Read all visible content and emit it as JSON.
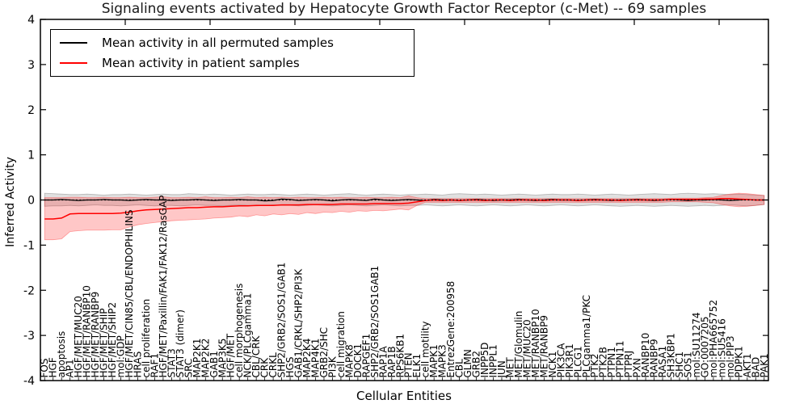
{
  "chart_data": {
    "type": "line",
    "title": "Signaling events activated by Hepatocyte Growth Factor Receptor (c-Met) -- 69 samples",
    "xlabel": "Cellular Entities",
    "ylabel": "Inferred Activity",
    "ylim": [
      -4,
      4
    ],
    "yticks": [
      4,
      3,
      2,
      1,
      0,
      -1,
      -2,
      -3,
      -4
    ],
    "grid": false,
    "legend_position": "upper left",
    "zero_line": {
      "style": "dotted",
      "color": "#000000",
      "y": 0
    },
    "categories": [
      "FOS",
      "HGF",
      "apoptosis",
      "AP1",
      "HGF/MET/MUC20",
      "HGF/MET/RANBP10",
      "HGF/MET/RANBP9",
      "HGF/MET/SHIP",
      "HGF/MET/SHIP2",
      "mol:GDP",
      "HGF/MET/CIN85/CBL/ENDOPHILINS",
      "HRAS",
      "cell proliferation",
      "RAF1",
      "HGF/MET/Paxillin/FAK1/FAK12/RasGAP",
      "STAT3",
      "STAT3 (dimer)",
      "SRC",
      "MAP2K1",
      "MAP2K2",
      "GAB1",
      "MAP3K5",
      "HGF/MET",
      "cell morphogenesis",
      "NCK/PLCgamma1",
      "CBL/CRK",
      "CRK",
      "CRKL",
      "SHP2/GRB2/SOS1/GAB1",
      "HGS",
      "GAB1/CRKL/SHP2/PI3K",
      "MAP2K4",
      "MAP4K1",
      "GRB2/SHC",
      "PI3K",
      "cell migration",
      "MAPK8",
      "DOCK1",
      "RAPGEF1",
      "SHP2/GRB2/SOS1GAB1",
      "RAP1A",
      "RAP1B",
      "RPS6KB1",
      "PTEN",
      "ELK1",
      "cell motility",
      "MAPK1",
      "MAPK3",
      "EntrezGene:200958",
      "CBL",
      "GLMN",
      "GRB2",
      "INPP5D",
      "INPPL1",
      "JUN",
      "MET",
      "MET/Glomulin",
      "MET/MUC20",
      "MET/RANBP10",
      "MET/RANBP9",
      "NCK1",
      "PIK3CA",
      "PIK3R1",
      "PLCG1",
      "PLCgamma1/PKC",
      "PTK2",
      "PTK2B",
      "PTPN1",
      "PTPN11",
      "PTPRJ",
      "PXN",
      "RANBP10",
      "RANBP9",
      "RASA1",
      "SH3KBP1",
      "SHC1",
      "SOS1",
      "mol:SU11274",
      "GO:0007205",
      "mol:PHA665752",
      "mol:SU5416",
      "mol:PIP3",
      "PDPK1",
      "AKT1",
      "BAD",
      "PAK1"
    ],
    "series": [
      {
        "name": "Mean activity in all permuted samples",
        "color": "#000000",
        "band_color": "#000000",
        "band_opacity": 0.12,
        "values": [
          0.0,
          0.0,
          0.01,
          0.0,
          -0.01,
          0.0,
          0.0,
          0.01,
          0.0,
          0.0,
          -0.01,
          0.0,
          0.01,
          0.0,
          0.0,
          -0.01,
          0.0,
          0.0,
          0.01,
          0.0,
          -0.01,
          0.0,
          0.0,
          0.01,
          0.0,
          0.0,
          -0.02,
          -0.01,
          0.02,
          0.01,
          -0.01,
          0.0,
          0.01,
          0.0,
          -0.02,
          0.0,
          0.01,
          0.0,
          -0.01,
          0.02,
          0.0,
          -0.01,
          0.0,
          0.01,
          0.0,
          -0.01,
          0.01,
          0.0,
          0.0,
          -0.01,
          0.0,
          0.01,
          0.0,
          -0.01,
          0.0,
          0.0,
          0.01,
          0.0,
          -0.01,
          0.0,
          0.01,
          0.0,
          0.0,
          -0.01,
          0.0,
          0.01,
          0.0,
          -0.01,
          0.0,
          0.0,
          0.01,
          0.0,
          -0.01,
          0.0,
          0.01,
          0.0,
          -0.01,
          0.0,
          0.0,
          0.01,
          0.0,
          -0.01,
          0.0,
          0.01,
          0.0,
          0.0
        ],
        "band_upper": [
          0.15,
          0.14,
          0.13,
          0.12,
          0.12,
          0.13,
          0.12,
          0.11,
          0.12,
          0.12,
          0.13,
          0.12,
          0.11,
          0.12,
          0.13,
          0.12,
          0.12,
          0.14,
          0.13,
          0.12,
          0.13,
          0.12,
          0.11,
          0.12,
          0.13,
          0.12,
          0.12,
          0.13,
          0.12,
          0.11,
          0.12,
          0.13,
          0.12,
          0.11,
          0.12,
          0.13,
          0.14,
          0.12,
          0.11,
          0.12,
          0.13,
          0.12,
          0.11,
          0.12,
          0.12,
          0.13,
          0.12,
          0.11,
          0.13,
          0.14,
          0.13,
          0.12,
          0.13,
          0.12,
          0.11,
          0.12,
          0.13,
          0.12,
          0.11,
          0.12,
          0.13,
          0.12,
          0.12,
          0.13,
          0.12,
          0.11,
          0.12,
          0.13,
          0.12,
          0.11,
          0.12,
          0.13,
          0.14,
          0.13,
          0.12,
          0.14,
          0.15,
          0.14,
          0.13,
          0.14,
          0.13,
          0.12,
          0.13,
          0.12,
          0.11,
          0.1
        ],
        "band_lower": [
          -0.14,
          -0.13,
          -0.13,
          -0.12,
          -0.13,
          -0.12,
          -0.11,
          -0.12,
          -0.12,
          -0.13,
          -0.12,
          -0.11,
          -0.12,
          -0.13,
          -0.12,
          -0.12,
          -0.13,
          -0.12,
          -0.11,
          -0.12,
          -0.12,
          -0.13,
          -0.12,
          -0.11,
          -0.12,
          -0.13,
          -0.12,
          -0.11,
          -0.12,
          -0.12,
          -0.13,
          -0.12,
          -0.11,
          -0.12,
          -0.13,
          -0.12,
          -0.11,
          -0.12,
          -0.13,
          -0.12,
          -0.11,
          -0.12,
          -0.13,
          -0.12,
          -0.12,
          -0.11,
          -0.12,
          -0.13,
          -0.12,
          -0.11,
          -0.12,
          -0.13,
          -0.12,
          -0.11,
          -0.12,
          -0.13,
          -0.12,
          -0.11,
          -0.12,
          -0.13,
          -0.12,
          -0.11,
          -0.12,
          -0.13,
          -0.12,
          -0.11,
          -0.12,
          -0.13,
          -0.14,
          -0.13,
          -0.12,
          -0.13,
          -0.14,
          -0.13,
          -0.12,
          -0.13,
          -0.14,
          -0.13,
          -0.12,
          -0.13,
          -0.12,
          -0.11,
          -0.12,
          -0.13,
          -0.12,
          -0.1
        ]
      },
      {
        "name": "Mean activity in patient samples",
        "color": "#ff0000",
        "band_color": "#ff0000",
        "band_opacity": 0.22,
        "values": [
          -0.42,
          -0.42,
          -0.4,
          -0.31,
          -0.3,
          -0.3,
          -0.3,
          -0.3,
          -0.3,
          -0.29,
          -0.27,
          -0.24,
          -0.22,
          -0.21,
          -0.2,
          -0.19,
          -0.18,
          -0.17,
          -0.17,
          -0.16,
          -0.15,
          -0.15,
          -0.14,
          -0.13,
          -0.13,
          -0.12,
          -0.12,
          -0.12,
          -0.11,
          -0.11,
          -0.11,
          -0.1,
          -0.1,
          -0.1,
          -0.1,
          -0.09,
          -0.09,
          -0.09,
          -0.09,
          -0.08,
          -0.08,
          -0.08,
          -0.08,
          -0.07,
          -0.04,
          -0.01,
          0.0,
          -0.01,
          0.0,
          -0.01,
          0.0,
          0.0,
          -0.01,
          0.0,
          0.0,
          -0.01,
          0.0,
          0.0,
          0.0,
          -0.01,
          0.0,
          0.0,
          0.0,
          -0.01,
          0.0,
          0.0,
          0.0,
          0.0,
          -0.01,
          0.0,
          0.0,
          0.0,
          0.0,
          0.0,
          0.01,
          0.01,
          0.01,
          0.01,
          0.02,
          0.02,
          0.03,
          0.03,
          0.02,
          0.01,
          0.0,
          0.0
        ],
        "band_upper": [
          0.05,
          0.05,
          0.05,
          0.06,
          0.06,
          0.05,
          0.05,
          0.06,
          0.05,
          0.05,
          0.06,
          0.05,
          0.05,
          0.06,
          0.07,
          0.05,
          0.05,
          0.06,
          0.05,
          0.07,
          0.05,
          0.05,
          0.06,
          0.05,
          0.07,
          0.05,
          0.06,
          0.05,
          0.06,
          0.05,
          0.06,
          0.05,
          0.05,
          0.06,
          0.05,
          0.06,
          0.05,
          0.05,
          0.06,
          0.05,
          0.05,
          0.06,
          0.05,
          0.09,
          0.05,
          0.03,
          0.03,
          0.03,
          0.03,
          0.03,
          0.03,
          0.03,
          0.03,
          0.03,
          0.03,
          0.03,
          0.03,
          0.03,
          0.03,
          0.03,
          0.03,
          0.03,
          0.03,
          0.03,
          0.03,
          0.03,
          0.03,
          0.03,
          0.03,
          0.03,
          0.03,
          0.03,
          0.03,
          0.03,
          0.04,
          0.04,
          0.04,
          0.04,
          0.05,
          0.06,
          0.1,
          0.13,
          0.15,
          0.14,
          0.12,
          0.1
        ],
        "band_lower": [
          -0.88,
          -0.88,
          -0.86,
          -0.7,
          -0.68,
          -0.67,
          -0.67,
          -0.67,
          -0.66,
          -0.66,
          -0.6,
          -0.55,
          -0.52,
          -0.5,
          -0.48,
          -0.46,
          -0.45,
          -0.44,
          -0.43,
          -0.42,
          -0.4,
          -0.39,
          -0.38,
          -0.35,
          -0.37,
          -0.33,
          -0.35,
          -0.31,
          -0.33,
          -0.3,
          -0.32,
          -0.28,
          -0.3,
          -0.27,
          -0.28,
          -0.25,
          -0.27,
          -0.24,
          -0.25,
          -0.23,
          -0.24,
          -0.22,
          -0.2,
          -0.22,
          -0.12,
          -0.05,
          -0.05,
          -0.05,
          -0.05,
          -0.05,
          -0.05,
          -0.05,
          -0.05,
          -0.05,
          -0.05,
          -0.05,
          -0.05,
          -0.05,
          -0.05,
          -0.05,
          -0.05,
          -0.05,
          -0.05,
          -0.05,
          -0.05,
          -0.05,
          -0.05,
          -0.05,
          -0.05,
          -0.05,
          -0.05,
          -0.05,
          -0.05,
          -0.05,
          -0.04,
          -0.04,
          -0.04,
          -0.04,
          -0.05,
          -0.06,
          -0.1,
          -0.13,
          -0.15,
          -0.14,
          -0.12,
          -0.1
        ]
      }
    ]
  }
}
